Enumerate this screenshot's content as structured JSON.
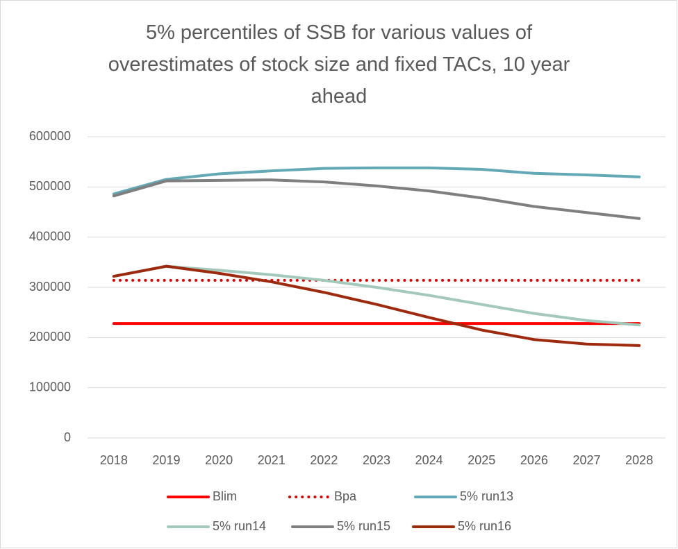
{
  "chart_data": {
    "type": "line",
    "title": "5% percentiles of SSB for various values of overestimates of stock size and fixed TACs, 10 year ahead",
    "categories": [
      "2018",
      "2019",
      "2020",
      "2021",
      "2022",
      "2023",
      "2024",
      "2025",
      "2026",
      "2027",
      "2028"
    ],
    "ylim": [
      0,
      600000
    ],
    "yticks": [
      0,
      100000,
      200000,
      300000,
      400000,
      500000,
      600000
    ],
    "grid": true,
    "legend": "bottom",
    "series": [
      {
        "name": "Blim",
        "color": "#ff0000",
        "style": "solid",
        "values": [
          228000,
          228000,
          228000,
          228000,
          228000,
          228000,
          228000,
          228000,
          228000,
          228000,
          228000
        ]
      },
      {
        "name": "Bpa",
        "color": "#e00000",
        "style": "dotted",
        "values": [
          314000,
          314000,
          314000,
          314000,
          314000,
          314000,
          314000,
          314000,
          314000,
          314000,
          314000
        ]
      },
      {
        "name": "5% run13",
        "color": "#62a9b5",
        "style": "solid",
        "values": [
          486000,
          515000,
          526000,
          532000,
          537000,
          538000,
          538000,
          535000,
          527000,
          524000,
          520000
        ]
      },
      {
        "name": "5% run14",
        "color": "#a3c9bb",
        "style": "solid",
        "values": [
          322000,
          342000,
          334000,
          325000,
          314000,
          300000,
          284000,
          266000,
          248000,
          234000,
          225000
        ]
      },
      {
        "name": "5% run15",
        "color": "#7f7f7f",
        "style": "solid",
        "values": [
          482000,
          512000,
          513000,
          514000,
          510000,
          502000,
          492000,
          478000,
          461000,
          449000,
          437000
        ]
      },
      {
        "name": "5% run16",
        "color": "#9e2a0e",
        "style": "solid",
        "values": [
          322000,
          342000,
          328000,
          311000,
          290000,
          266000,
          240000,
          215000,
          196000,
          187000,
          184000
        ]
      }
    ]
  }
}
